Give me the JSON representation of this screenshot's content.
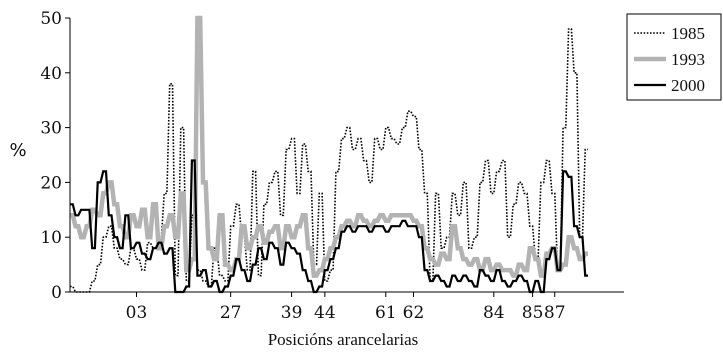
{
  "chart_data": {
    "type": "line",
    "title": "",
    "xlabel": "Posicións arancelarias",
    "ylabel": "%",
    "ylim": [
      0,
      50
    ],
    "yticks": [
      "0",
      "10",
      "20",
      "30",
      "40",
      "50"
    ],
    "xlim": [
      0,
      100
    ],
    "xticks": [
      {
        "pos": 12,
        "label": "03"
      },
      {
        "pos": 29,
        "label": "27"
      },
      {
        "pos": 40,
        "label": "39"
      },
      {
        "pos": 46,
        "label": "44"
      },
      {
        "pos": 57,
        "label": "61"
      },
      {
        "pos": 62,
        "label": "62"
      },
      {
        "pos": 76.5,
        "label": "84"
      },
      {
        "pos": 83.5,
        "label": "85"
      },
      {
        "pos": 87.5,
        "label": "87"
      }
    ],
    "legend_position": "top-right",
    "series": [
      {
        "name": "1985",
        "style": "dotted",
        "color": "#000000",
        "x": [
          0,
          1,
          2,
          3,
          4,
          5,
          6,
          7,
          8,
          9,
          10,
          11,
          12,
          13,
          14,
          15,
          16,
          17,
          18,
          19,
          20,
          21,
          22,
          23,
          24,
          25,
          26,
          27,
          28,
          29,
          30,
          31,
          32,
          33,
          34,
          35,
          36,
          37,
          38,
          39,
          40,
          41,
          42,
          43,
          44,
          45,
          46,
          47,
          48,
          49,
          50,
          51,
          52,
          53,
          54,
          55,
          56,
          57,
          58,
          59,
          60,
          61,
          62,
          63,
          64,
          65,
          66,
          67,
          68,
          69,
          70,
          71,
          72,
          73,
          74,
          75,
          76,
          77,
          78,
          79,
          80,
          81,
          82,
          83,
          84,
          85,
          86,
          87,
          88,
          89,
          90,
          91,
          92,
          93
        ],
        "y": [
          1,
          0,
          0,
          0,
          2,
          5,
          10,
          12,
          8,
          6,
          5,
          8,
          6,
          4,
          9,
          8,
          10,
          18,
          38,
          3,
          30,
          2,
          14,
          4,
          2,
          1,
          8,
          3,
          2,
          12,
          16,
          10,
          4,
          22,
          3,
          16,
          20,
          22,
          14,
          26,
          28,
          18,
          27,
          22,
          5,
          18,
          2,
          4,
          22,
          28,
          30,
          26,
          28,
          24,
          20,
          28,
          26,
          30,
          28,
          27,
          30,
          33,
          32,
          26,
          18,
          2,
          18,
          8,
          10,
          18,
          14,
          20,
          8,
          10,
          20,
          24,
          18,
          22,
          24,
          10,
          16,
          20,
          18,
          12,
          6,
          20,
          24,
          18,
          4,
          30,
          48,
          40,
          10,
          26
        ]
      },
      {
        "name": "1993",
        "style": "thick",
        "color": "#b3b3b3",
        "x": [
          0,
          1,
          2,
          3,
          4,
          5,
          6,
          7,
          8,
          9,
          10,
          11,
          12,
          13,
          14,
          15,
          16,
          17,
          18,
          19,
          20,
          21,
          22,
          23,
          24,
          25,
          26,
          27,
          28,
          29,
          30,
          31,
          32,
          33,
          34,
          35,
          36,
          37,
          38,
          39,
          40,
          41,
          42,
          43,
          44,
          45,
          46,
          47,
          48,
          49,
          50,
          51,
          52,
          53,
          54,
          55,
          56,
          57,
          58,
          59,
          60,
          61,
          62,
          63,
          64,
          65,
          66,
          67,
          68,
          69,
          70,
          71,
          72,
          73,
          74,
          75,
          76,
          77,
          78,
          79,
          80,
          81,
          82,
          83,
          84,
          85,
          86,
          87,
          88,
          89,
          90,
          91,
          92,
          93
        ],
        "y": [
          14,
          12,
          10,
          12,
          15,
          14,
          18,
          20,
          16,
          12,
          10,
          14,
          12,
          15,
          10,
          16,
          8,
          12,
          14,
          10,
          18,
          4,
          6,
          50,
          20,
          8,
          6,
          14,
          5,
          4,
          6,
          12,
          8,
          10,
          12,
          9,
          11,
          12,
          8,
          12,
          10,
          12,
          14,
          8,
          3,
          4,
          6,
          8,
          10,
          12,
          13,
          12,
          14,
          13,
          12,
          13,
          14,
          13,
          14,
          14,
          14,
          14,
          13,
          12,
          8,
          6,
          5,
          7,
          6,
          12,
          8,
          6,
          5,
          6,
          4,
          6,
          4,
          5,
          4,
          4,
          3,
          5,
          4,
          8,
          6,
          3,
          7,
          8,
          4,
          5,
          10,
          8,
          6,
          7
        ]
      },
      {
        "name": "2000",
        "style": "solid",
        "color": "#000000",
        "x": [
          0,
          1,
          2,
          3,
          4,
          5,
          6,
          7,
          8,
          9,
          10,
          11,
          12,
          13,
          14,
          15,
          16,
          17,
          18,
          19,
          20,
          21,
          22,
          23,
          24,
          25,
          26,
          27,
          28,
          29,
          30,
          31,
          32,
          33,
          34,
          35,
          36,
          37,
          38,
          39,
          40,
          41,
          42,
          43,
          44,
          45,
          46,
          47,
          48,
          49,
          50,
          51,
          52,
          53,
          54,
          55,
          56,
          57,
          58,
          59,
          60,
          61,
          62,
          63,
          64,
          65,
          66,
          67,
          68,
          69,
          70,
          71,
          72,
          73,
          74,
          75,
          76,
          77,
          78,
          79,
          80,
          81,
          82,
          83,
          84,
          85,
          86,
          87,
          88,
          89,
          90,
          91,
          92,
          93
        ],
        "y": [
          16,
          14,
          15,
          15,
          8,
          20,
          22,
          14,
          10,
          8,
          14,
          8,
          9,
          7,
          6,
          8,
          9,
          7,
          8,
          0,
          0,
          1,
          24,
          3,
          4,
          1,
          2,
          0,
          1,
          3,
          6,
          4,
          2,
          5,
          8,
          6,
          9,
          8,
          5,
          9,
          8,
          7,
          4,
          2,
          0,
          1,
          4,
          6,
          8,
          11,
          12,
          11,
          12,
          12,
          11,
          12,
          12,
          11,
          12,
          12,
          13,
          12,
          12,
          10,
          4,
          2,
          3,
          2,
          1,
          3,
          2,
          3,
          2,
          1,
          4,
          3,
          2,
          4,
          2,
          1,
          2,
          3,
          2,
          0,
          2,
          0,
          6,
          8,
          4,
          22,
          21,
          12,
          10,
          3
        ]
      }
    ]
  }
}
